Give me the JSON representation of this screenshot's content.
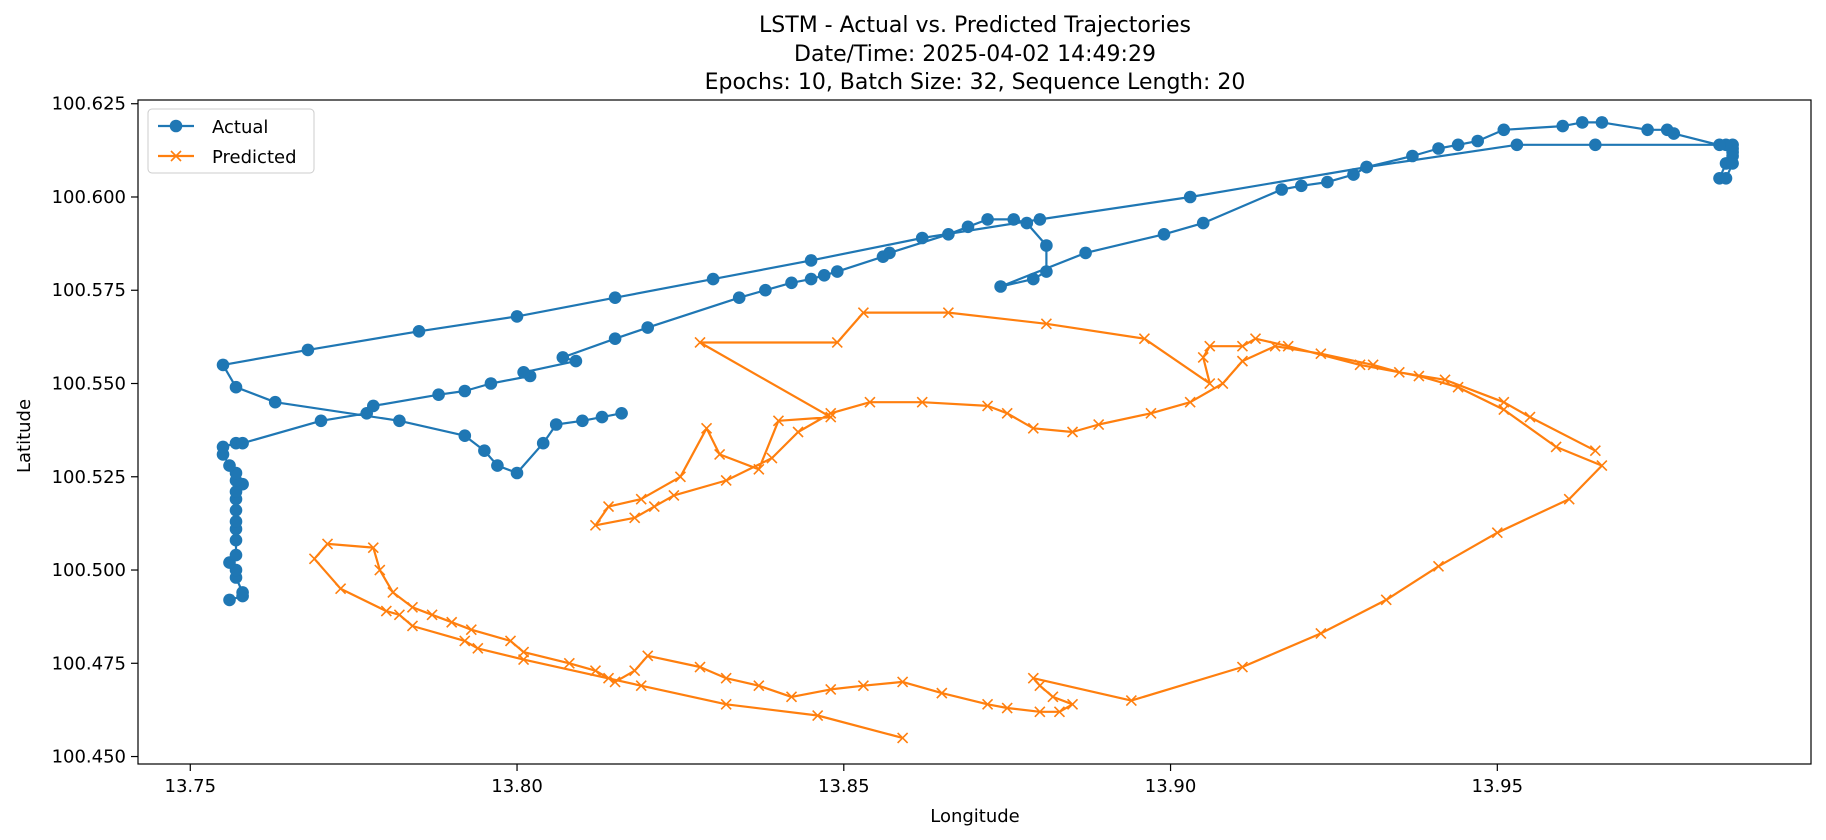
{
  "chart_data": {
    "type": "line",
    "title_lines": [
      "LSTM - Actual vs. Predicted Trajectories",
      "Date/Time: 2025-04-02 14:49:29",
      "Epochs: 10, Batch Size: 32, Sequence Length: 20"
    ],
    "xlabel": "Longitude",
    "ylabel": "Latitude",
    "xlim": [
      13.742,
      13.998
    ],
    "ylim": [
      100.448,
      100.626
    ],
    "xticks": [
      13.75,
      13.8,
      13.85,
      13.9,
      13.95
    ],
    "xtick_labels": [
      "13.75",
      "13.80",
      "13.85",
      "13.90",
      "13.95"
    ],
    "yticks": [
      100.45,
      100.475,
      100.5,
      100.525,
      100.55,
      100.575,
      100.6,
      100.625
    ],
    "ytick_labels": [
      "100.450",
      "100.475",
      "100.500",
      "100.525",
      "100.550",
      "100.575",
      "100.600",
      "100.625"
    ],
    "grid": false,
    "legend_position": "top-left",
    "colors": {
      "actual": "#1f77b4",
      "predicted": "#ff7f0e"
    },
    "series": [
      {
        "name": "Actual",
        "marker": "circle",
        "x": [
          13.756,
          13.758,
          13.758,
          13.757,
          13.757,
          13.756,
          13.757,
          13.757,
          13.757,
          13.757,
          13.757,
          13.757,
          13.757,
          13.758,
          13.757,
          13.757,
          13.756,
          13.755,
          13.755,
          13.757,
          13.758,
          13.77,
          13.777,
          13.778,
          13.788,
          13.792,
          13.796,
          13.802,
          13.801,
          13.809,
          13.807,
          13.815,
          13.82,
          13.834,
          13.838,
          13.842,
          13.845,
          13.847,
          13.849,
          13.856,
          13.857,
          13.866,
          13.869,
          13.872,
          13.876,
          13.878,
          13.881,
          13.881,
          13.879,
          13.874,
          13.887,
          13.899,
          13.905,
          13.917,
          13.92,
          13.924,
          13.928,
          13.93,
          13.937,
          13.941,
          13.944,
          13.947,
          13.951,
          13.96,
          13.963,
          13.966,
          13.973,
          13.976,
          13.977,
          13.986,
          13.986,
          13.985,
          13.984,
          13.985,
          13.986,
          13.986,
          13.986,
          13.985,
          13.984,
          13.965,
          13.953,
          13.93,
          13.903,
          13.88,
          13.862,
          13.845,
          13.83,
          13.815,
          13.8,
          13.785,
          13.768,
          13.755,
          13.757,
          13.763,
          13.782,
          13.792,
          13.795,
          13.797,
          13.8,
          13.804,
          13.806,
          13.81,
          13.813,
          13.816
        ],
        "y": [
          100.492,
          100.493,
          100.494,
          100.498,
          100.5,
          100.502,
          100.504,
          100.508,
          100.511,
          100.513,
          100.516,
          100.519,
          100.521,
          100.523,
          100.524,
          100.526,
          100.528,
          100.531,
          100.533,
          100.534,
          100.534,
          100.54,
          100.542,
          100.544,
          100.547,
          100.548,
          100.55,
          100.552,
          100.553,
          100.556,
          100.557,
          100.562,
          100.565,
          100.573,
          100.575,
          100.577,
          100.578,
          100.579,
          100.58,
          100.584,
          100.585,
          100.59,
          100.592,
          100.594,
          100.594,
          100.593,
          100.587,
          100.58,
          100.578,
          100.576,
          100.585,
          100.59,
          100.593,
          100.602,
          100.603,
          100.604,
          100.606,
          100.608,
          100.611,
          100.613,
          100.614,
          100.615,
          100.618,
          100.619,
          100.62,
          100.62,
          100.618,
          100.618,
          100.617,
          100.613,
          100.611,
          100.609,
          100.605,
          100.605,
          100.609,
          100.612,
          100.614,
          100.614,
          100.614,
          100.614,
          100.614,
          100.608,
          100.6,
          100.594,
          100.589,
          100.583,
          100.578,
          100.573,
          100.568,
          100.564,
          100.559,
          100.555,
          100.549,
          100.545,
          100.54,
          100.536,
          100.532,
          100.528,
          100.526,
          100.534,
          100.539,
          100.54,
          100.541,
          100.542
        ]
      },
      {
        "name": "Predicted",
        "marker": "x",
        "x": [
          13.859,
          13.846,
          13.832,
          13.819,
          13.801,
          13.794,
          13.792,
          13.784,
          13.782,
          13.78,
          13.773,
          13.769,
          13.771,
          13.778,
          13.779,
          13.781,
          13.784,
          13.787,
          13.79,
          13.793,
          13.799,
          13.801,
          13.808,
          13.812,
          13.814,
          13.815,
          13.818,
          13.82,
          13.828,
          13.832,
          13.837,
          13.842,
          13.848,
          13.853,
          13.859,
          13.865,
          13.872,
          13.875,
          13.88,
          13.883,
          13.885,
          13.882,
          13.88,
          13.879,
          13.894,
          13.911,
          13.923,
          13.933,
          13.941,
          13.95,
          13.961,
          13.966,
          13.959,
          13.951,
          13.944,
          13.938,
          13.929,
          13.918,
          13.913,
          13.911,
          13.906,
          13.905,
          13.906,
          13.896,
          13.881,
          13.866,
          13.853,
          13.849,
          13.828,
          13.848,
          13.84,
          13.837,
          13.831,
          13.829,
          13.825,
          13.819,
          13.814,
          13.812,
          13.818,
          13.821,
          13.824,
          13.832,
          13.839,
          13.843,
          13.848,
          13.854,
          13.862,
          13.872,
          13.875,
          13.879,
          13.885,
          13.889,
          13.897,
          13.903,
          13.908,
          13.911,
          13.916,
          13.923,
          13.931,
          13.935,
          13.942,
          13.951,
          13.955,
          13.965
        ],
        "y": [
          100.455,
          100.461,
          100.464,
          100.469,
          100.476,
          100.479,
          100.481,
          100.485,
          100.488,
          100.489,
          100.495,
          100.503,
          100.507,
          100.506,
          100.5,
          100.494,
          100.49,
          100.488,
          100.486,
          100.484,
          100.481,
          100.478,
          100.475,
          100.473,
          100.471,
          100.47,
          100.473,
          100.477,
          100.474,
          100.471,
          100.469,
          100.466,
          100.468,
          100.469,
          100.47,
          100.467,
          100.464,
          100.463,
          100.462,
          100.462,
          100.464,
          100.466,
          100.469,
          100.471,
          100.465,
          100.474,
          100.483,
          100.492,
          100.501,
          100.51,
          100.519,
          100.528,
          100.533,
          100.543,
          100.549,
          100.552,
          100.555,
          100.56,
          100.562,
          100.56,
          100.56,
          100.557,
          100.55,
          100.562,
          100.566,
          100.569,
          100.569,
          100.561,
          100.561,
          100.541,
          100.54,
          100.527,
          100.531,
          100.538,
          100.525,
          100.519,
          100.517,
          100.512,
          100.514,
          100.517,
          100.52,
          100.524,
          100.53,
          100.537,
          100.542,
          100.545,
          100.545,
          100.544,
          100.542,
          100.538,
          100.537,
          100.539,
          100.542,
          100.545,
          100.55,
          100.556,
          100.56,
          100.558,
          100.555,
          100.553,
          100.551,
          100.545,
          100.541,
          100.532
        ]
      }
    ]
  }
}
